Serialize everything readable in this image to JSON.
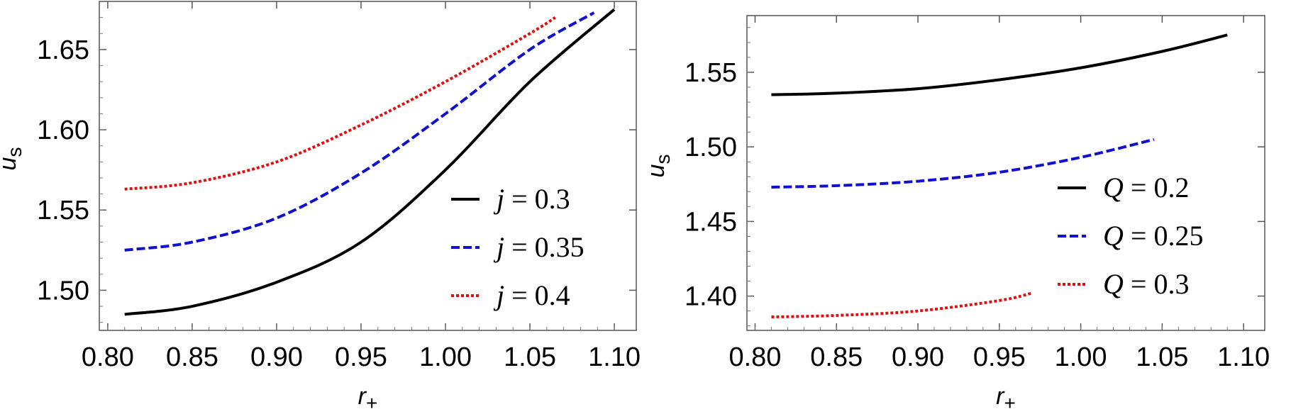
{
  "chart_data": [
    {
      "type": "line",
      "title": "",
      "xlabel": "r",
      "xlabel_sub": "+",
      "ylabel": "u",
      "ylabel_sub": "s",
      "xlim": [
        0.795,
        1.113
      ],
      "ylim": [
        1.475,
        1.68
      ],
      "xticks": [
        0.8,
        0.85,
        0.9,
        0.95,
        1.0,
        1.05,
        1.1
      ],
      "xtick_labels": [
        "0.80",
        "0.85",
        "0.90",
        "0.95",
        "1.00",
        "1.05",
        "1.10"
      ],
      "yticks": [
        1.5,
        1.55,
        1.6,
        1.65
      ],
      "ytick_labels": [
        "1.50",
        "1.55",
        "1.60",
        "1.65"
      ],
      "grid": false,
      "legend_position": "lower-right",
      "series": [
        {
          "name_var": "j",
          "name_val": "= 0.3",
          "color": "#000000",
          "style": "solid",
          "x": [
            0.81,
            0.85,
            0.9,
            0.95,
            1.0,
            1.05,
            1.1
          ],
          "y": [
            1.485,
            1.49,
            1.505,
            1.53,
            1.575,
            1.63,
            1.675
          ]
        },
        {
          "name_var": "j",
          "name_val": "= 0.35",
          "color": "#1010d0",
          "style": "dashed",
          "x": [
            0.81,
            0.85,
            0.9,
            0.95,
            1.0,
            1.05,
            1.088
          ],
          "y": [
            1.525,
            1.53,
            1.545,
            1.573,
            1.61,
            1.65,
            1.673
          ]
        },
        {
          "name_var": "j",
          "name_val": "= 0.4",
          "color": "#e01010",
          "style": "dotted",
          "x": [
            0.81,
            0.85,
            0.9,
            0.95,
            1.0,
            1.05,
            1.065
          ],
          "y": [
            1.563,
            1.567,
            1.58,
            1.603,
            1.63,
            1.66,
            1.67
          ]
        }
      ]
    },
    {
      "type": "line",
      "title": "",
      "xlabel": "r",
      "xlabel_sub": "+",
      "ylabel": "u",
      "ylabel_sub": "s",
      "xlim": [
        0.795,
        1.113
      ],
      "ylim": [
        1.377,
        1.588
      ],
      "xticks": [
        0.8,
        0.85,
        0.9,
        0.95,
        1.0,
        1.05,
        1.1
      ],
      "xtick_labels": [
        "0.80",
        "0.85",
        "0.90",
        "0.95",
        "1.00",
        "1.05",
        "1.10"
      ],
      "yticks": [
        1.4,
        1.45,
        1.5,
        1.55
      ],
      "ytick_labels": [
        "1.40",
        "1.45",
        "1.50",
        "1.55"
      ],
      "grid": false,
      "legend_position": "center-right",
      "series": [
        {
          "name_var": "Q",
          "name_val": "= 0.2",
          "color": "#000000",
          "style": "solid",
          "x": [
            0.81,
            0.85,
            0.9,
            0.95,
            1.0,
            1.05,
            1.09
          ],
          "y": [
            1.535,
            1.536,
            1.539,
            1.545,
            1.553,
            1.564,
            1.575
          ]
        },
        {
          "name_var": "Q",
          "name_val": "= 0.25",
          "color": "#1010d0",
          "style": "dashed",
          "x": [
            0.81,
            0.85,
            0.9,
            0.95,
            1.0,
            1.045
          ],
          "y": [
            1.473,
            1.474,
            1.477,
            1.483,
            1.493,
            1.505
          ]
        },
        {
          "name_var": "Q",
          "name_val": "= 0.3",
          "color": "#e01010",
          "style": "dotted",
          "x": [
            0.81,
            0.85,
            0.9,
            0.95,
            0.97
          ],
          "y": [
            1.386,
            1.387,
            1.39,
            1.397,
            1.402
          ]
        }
      ]
    }
  ]
}
